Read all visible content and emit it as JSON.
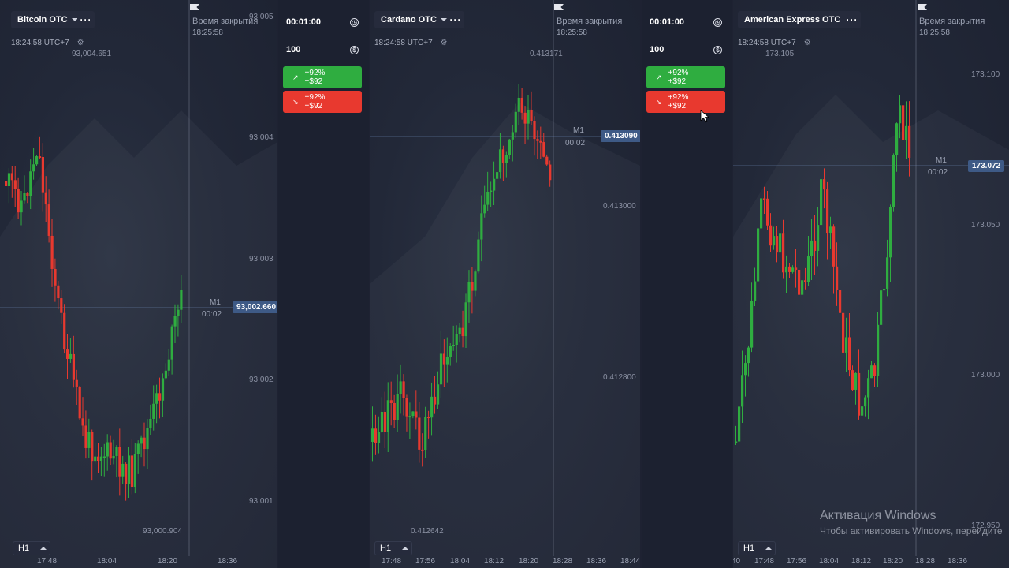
{
  "panels": [
    {
      "asset": "Bitcoin OTC",
      "time": "18:24:58 UTC+7",
      "close_label": "Время закрытия",
      "close_time": "18:25:58",
      "high": "93,004.651",
      "low": "93,000.904",
      "price_ticks": [
        "93,005",
        "93,004",
        "93,003",
        "93,002",
        "93,001"
      ],
      "tf_label": "M1",
      "countdown": "00:02",
      "current_price": "93,002.660",
      "timeframe": "H1",
      "time_ticks": [
        "17:48",
        "18:04",
        "18:20",
        "18:36"
      ]
    },
    {
      "asset": "Cardano OTC",
      "time": "18:24:58 UTC+7",
      "close_label": "Время закрытия",
      "close_time": "18:25:58",
      "high": "0.413171",
      "low": "0.412642",
      "price_ticks": [
        "0.413000",
        "0.412800"
      ],
      "tf_label": "M1",
      "countdown": "00:02",
      "current_price": "0.413090",
      "timeframe": "H1",
      "time_ticks": [
        "17:48",
        "17:56",
        "18:04",
        "18:12",
        "18:20",
        "18:28",
        "18:36",
        "18:44"
      ]
    },
    {
      "asset": "American Express OTC",
      "time": "18:24:58 UTC+7",
      "close_label": "Время закрытия",
      "close_time": "18:25:58",
      "high": "173.105",
      "low": "172.950",
      "price_ticks": [
        "173.100",
        "173.050",
        "173.000",
        "172.950"
      ],
      "tf_label": "M1",
      "countdown": "00:02",
      "current_price": "173.072",
      "timeframe": "H1",
      "time_ticks": [
        "40",
        "17:48",
        "17:56",
        "18:04",
        "18:12",
        "18:20",
        "18:28",
        "18:36"
      ]
    }
  ],
  "trade_panels": [
    {
      "duration": "00:01:00",
      "amount": "100",
      "buy_percent": "+92%",
      "buy_payout": "+$92",
      "sell_percent": "+92%",
      "sell_payout": "+$92"
    },
    {
      "duration": "00:01:00",
      "amount": "100",
      "buy_percent": "+92%",
      "buy_payout": "+$92",
      "sell_percent": "+92%",
      "sell_payout": "+$92"
    }
  ],
  "watermark": {
    "title": "Активация Windows",
    "subtitle": "Чтобы активировать Windows, перейдите"
  },
  "colors": {
    "up": "#2fad40",
    "down": "#e8392f",
    "price_tag": "#3e5a86",
    "background": "#1e2232"
  },
  "icons": [
    "caret-down-icon",
    "more-icon",
    "gear-icon",
    "flag-icon",
    "clock-icon",
    "dollar-icon",
    "arrow-up-right-icon",
    "arrow-down-right-icon",
    "caret-up-icon"
  ]
}
